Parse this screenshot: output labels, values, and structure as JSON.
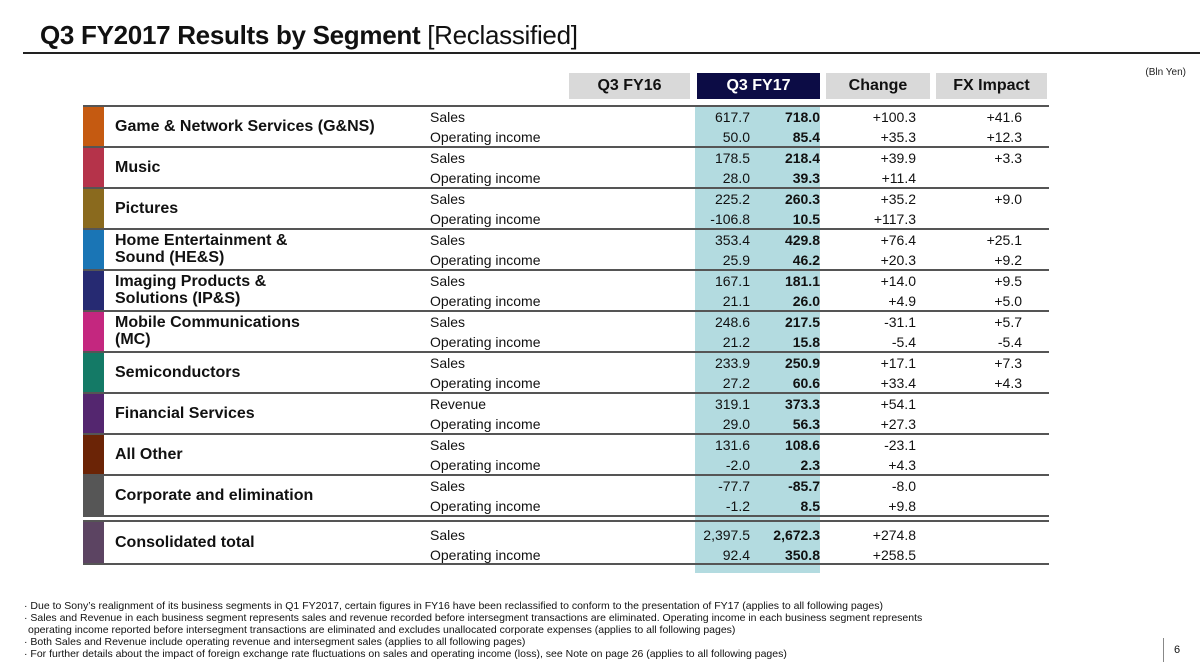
{
  "title": {
    "main": "Q3 FY2017 Results by Segment",
    "sub": "[Reclassified]"
  },
  "unit": "(Bln Yen)",
  "columns": [
    "Q3 FY16",
    "Q3 FY17",
    "Change",
    "FX Impact"
  ],
  "colors": {
    "header_gray": "#d9d9d9",
    "header_navy": "#0c0c45",
    "fy17_highlight": "#b3dbe0"
  },
  "segments": [
    {
      "name": "Game & Network Services (G&NS)",
      "color": "#c55a11",
      "rows": [
        {
          "label": "Sales",
          "fy16": "617.7",
          "fy17": "718.0",
          "change": "+100.3",
          "fx": "+41.6"
        },
        {
          "label": "Operating income",
          "fy16": "50.0",
          "fy17": "85.4",
          "change": "+35.3",
          "fx": "+12.3"
        }
      ]
    },
    {
      "name": "Music",
      "color": "#b5334a",
      "rows": [
        {
          "label": "Sales",
          "fy16": "178.5",
          "fy17": "218.4",
          "change": "+39.9",
          "fx": "+3.3"
        },
        {
          "label": "Operating income",
          "fy16": "28.0",
          "fy17": "39.3",
          "change": "+11.4",
          "fx": ""
        }
      ]
    },
    {
      "name": "Pictures",
      "color": "#8a6a1e",
      "rows": [
        {
          "label": "Sales",
          "fy16": "225.2",
          "fy17": "260.3",
          "change": "+35.2",
          "fx": "+9.0"
        },
        {
          "label": "Operating income",
          "fy16": "-106.8",
          "fy17": "10.5",
          "change": "+117.3",
          "fx": ""
        }
      ]
    },
    {
      "name": "Home Entertainment & Sound (HE&S)",
      "name_lines": [
        "Home Entertainment &",
        "Sound (HE&S)"
      ],
      "color": "#1a75b5",
      "rows": [
        {
          "label": "Sales",
          "fy16": "353.4",
          "fy17": "429.8",
          "change": "+76.4",
          "fx": "+25.1"
        },
        {
          "label": "Operating income",
          "fy16": "25.9",
          "fy17": "46.2",
          "change": "+20.3",
          "fx": "+9.2"
        }
      ]
    },
    {
      "name": "Imaging Products & Solutions (IP&S)",
      "name_lines": [
        "Imaging Products &",
        "Solutions (IP&S)"
      ],
      "color": "#262a72",
      "rows": [
        {
          "label": "Sales",
          "fy16": "167.1",
          "fy17": "181.1",
          "change": "+14.0",
          "fx": "+9.5"
        },
        {
          "label": "Operating income",
          "fy16": "21.1",
          "fy17": "26.0",
          "change": "+4.9",
          "fx": "+5.0"
        }
      ]
    },
    {
      "name": "Mobile Communications (MC)",
      "name_lines": [
        "Mobile Communications",
        "(MC)"
      ],
      "color": "#c4277f",
      "rows": [
        {
          "label": "Sales",
          "fy16": "248.6",
          "fy17": "217.5",
          "change": "-31.1",
          "fx": "+5.7"
        },
        {
          "label": "Operating income",
          "fy16": "21.2",
          "fy17": "15.8",
          "change": "-5.4",
          "fx": "-5.4"
        }
      ]
    },
    {
      "name": "Semiconductors",
      "color": "#147a66",
      "rows": [
        {
          "label": "Sales",
          "fy16": "233.9",
          "fy17": "250.9",
          "change": "+17.1",
          "fx": "+7.3"
        },
        {
          "label": "Operating income",
          "fy16": "27.2",
          "fy17": "60.6",
          "change": "+33.4",
          "fx": "+4.3"
        }
      ]
    },
    {
      "name": "Financial Services",
      "color": "#54266f",
      "rows": [
        {
          "label": "Revenue",
          "fy16": "319.1",
          "fy17": "373.3",
          "change": "+54.1",
          "fx": ""
        },
        {
          "label": "Operating income",
          "fy16": "29.0",
          "fy17": "56.3",
          "change": "+27.3",
          "fx": ""
        }
      ]
    },
    {
      "name": "All Other",
      "color": "#6b2406",
      "rows": [
        {
          "label": "Sales",
          "fy16": "131.6",
          "fy17": "108.6",
          "change": "-23.1",
          "fx": ""
        },
        {
          "label": "Operating income",
          "fy16": "-2.0",
          "fy17": "2.3",
          "change": "+4.3",
          "fx": ""
        }
      ]
    },
    {
      "name": "Corporate and elimination",
      "color": "#565656",
      "rows": [
        {
          "label": "Sales",
          "fy16": "-77.7",
          "fy17": "-85.7",
          "change": "-8.0",
          "fx": ""
        },
        {
          "label": "Operating income",
          "fy16": "-1.2",
          "fy17": "8.5",
          "change": "+9.8",
          "fx": ""
        }
      ]
    }
  ],
  "total": {
    "name": "Consolidated total",
    "color": "#5c4462",
    "rows": [
      {
        "label": "Sales",
        "fy16": "2,397.5",
        "fy17": "2,672.3",
        "change": "+274.8",
        "fx": ""
      },
      {
        "label": "Operating income",
        "fy16": "92.4",
        "fy17": "350.8",
        "change": "+258.5",
        "fx": ""
      }
    ]
  },
  "notes": [
    "· Due to Sony’s realignment of its business segments in Q1 FY2017, certain figures in FY16 have been reclassified to conform to the presentation of FY17 (applies to all following pages)",
    "· Sales and Revenue in each business segment represents sales and revenue recorded before intersegment transactions are eliminated. Operating income in each business segment represents",
    "  operating income reported before intersegment transactions are eliminated and excludes unallocated corporate expenses (applies to all following pages)",
    "· Both Sales and Revenue include operating revenue and intersegment sales (applies to all following pages)",
    "· For further details about the impact of foreign exchange rate fluctuations on sales and operating income (loss), see Note on page 26 (applies to all following pages)"
  ],
  "page_number": "6"
}
